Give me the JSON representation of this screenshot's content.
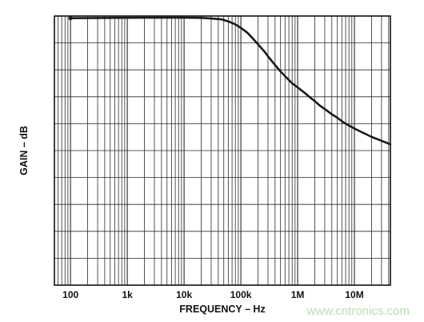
{
  "chart_data": {
    "type": "line",
    "title": "",
    "xlabel": "FREQUENCY – Hz",
    "ylabel": "GAIN – dB",
    "x_scale": "log",
    "xlim": [
      52,
      43000000
    ],
    "ylim": [
      0,
      100
    ],
    "x_tick_values": [
      100,
      1000,
      10000,
      100000,
      1000000,
      10000000
    ],
    "x_tick_labels": [
      "100",
      "1k",
      "10k",
      "100k",
      "1M",
      "10M"
    ],
    "y_grid_count": 10,
    "grid": true,
    "legend": "none",
    "series": [
      {
        "x": [
          100,
          200,
          500,
          1000,
          2000,
          5000,
          10000,
          20000,
          30000,
          45000,
          60000,
          80000,
          100000,
          130000,
          160000,
          200000,
          260000,
          320000,
          400000,
          500000,
          630000,
          800000,
          1000000,
          1300000,
          1600000,
          2000000,
          2500000,
          3200000,
          4000000,
          5000000,
          6300000,
          8000000,
          10000000,
          13000000,
          16000000,
          20000000,
          25000000,
          32000000,
          40000000,
          43000000
        ],
        "y": [
          99.2,
          99.25,
          99.3,
          99.35,
          99.4,
          99.4,
          99.4,
          99.3,
          99.1,
          98.8,
          98.0,
          96.9,
          95.6,
          93.8,
          91.8,
          89.5,
          86.8,
          84.3,
          81.8,
          79.4,
          77.2,
          75.0,
          73.5,
          71.6,
          70.0,
          68.4,
          66.6,
          65.0,
          63.5,
          62.2,
          60.6,
          59.3,
          58.2,
          57.0,
          56.1,
          55.1,
          54.3,
          53.4,
          52.6,
          52.3
        ]
      }
    ]
  },
  "watermark": "www.cntronics.com",
  "colors": {
    "curve": "#1a1a1a",
    "grid": "#2a2a2a",
    "watermark": "#b9ddb0"
  }
}
